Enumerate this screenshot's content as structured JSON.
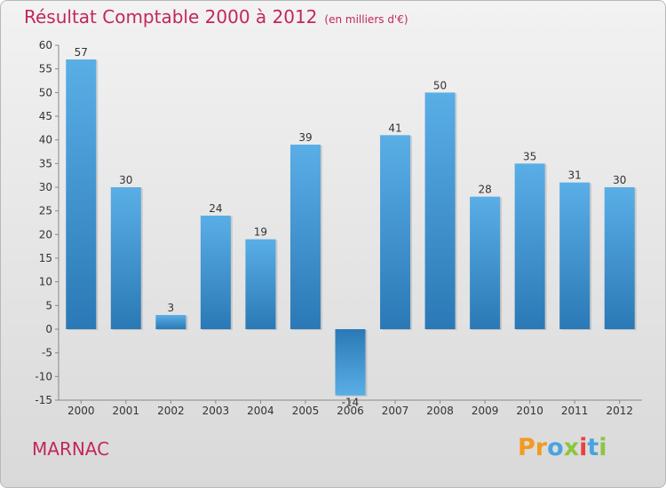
{
  "header": {
    "title": "Résultat Comptable 2000 à 2012",
    "subtitle": "(en milliers d'€)"
  },
  "footer": {
    "commune": "MARNAC",
    "logo_letters": [
      "P",
      "r",
      "o",
      "x",
      "i",
      "t",
      "i"
    ],
    "logo_colors": [
      "#f39a1f",
      "#f39a1f",
      "#4aa3df",
      "#8cc63f",
      "#e8423f",
      "#4aa3df",
      "#8cc63f"
    ]
  },
  "chart_data": {
    "type": "bar",
    "title": "Résultat Comptable 2000 à 2012",
    "subtitle": "(en milliers d'€)",
    "categories": [
      "2000",
      "2001",
      "2002",
      "2003",
      "2004",
      "2005",
      "2006",
      "2007",
      "2008",
      "2009",
      "2010",
      "2011",
      "2012"
    ],
    "values": [
      57,
      30,
      3,
      24,
      19,
      39,
      -14,
      41,
      50,
      28,
      35,
      31,
      30
    ],
    "ylim": [
      -15,
      60
    ],
    "yticks": [
      -15,
      -10,
      -5,
      0,
      5,
      10,
      15,
      20,
      25,
      30,
      35,
      40,
      45,
      50,
      55,
      60
    ],
    "grid": false,
    "bar_color_top": "#5aaee6",
    "bar_color_bottom": "#2a79b6",
    "xlabel": "",
    "ylabel": ""
  }
}
